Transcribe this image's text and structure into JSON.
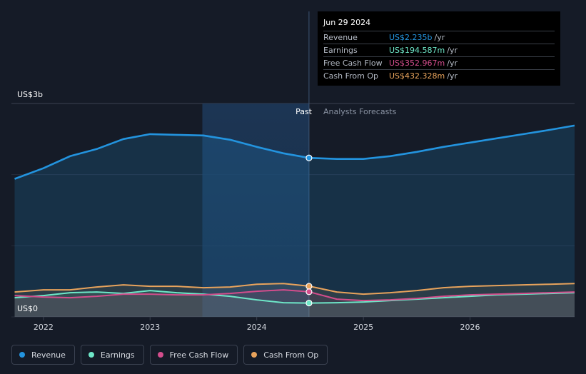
{
  "colors": {
    "revenue": "#2394df",
    "earnings": "#6ee7c8",
    "free_cash_flow": "#d34d8c",
    "cash_from_op": "#e8a35c",
    "background": "#151b27"
  },
  "chart_data": {
    "type": "line",
    "y_max_label": "US$3b",
    "y_min_label": "US$0",
    "ylim": [
      0,
      3.0
    ],
    "xlim": [
      2021.7,
      2026.98
    ],
    "x_ticks": [
      {
        "value": 2022.0,
        "label": "2022"
      },
      {
        "value": 2023.0,
        "label": "2023"
      },
      {
        "value": 2024.0,
        "label": "2024"
      },
      {
        "value": 2025.0,
        "label": "2025"
      },
      {
        "value": 2026.0,
        "label": "2026"
      }
    ],
    "past_label": "Past",
    "forecast_label": "Analysts Forecasts",
    "divider_x": 2024.49,
    "shade_start_x": 2023.49,
    "marker_x": 2024.49,
    "grid": true,
    "legend_position": "bottom-left",
    "series": [
      {
        "name": "Revenue",
        "key": "revenue",
        "x": [
          2021.73,
          2022.0,
          2022.25,
          2022.5,
          2022.75,
          2023.0,
          2023.25,
          2023.5,
          2023.75,
          2024.0,
          2024.25,
          2024.49,
          2024.75,
          2025.0,
          2025.25,
          2025.5,
          2025.75,
          2026.0,
          2026.25,
          2026.5,
          2026.75,
          2026.98
        ],
        "y": [
          1.94,
          2.09,
          2.26,
          2.36,
          2.5,
          2.57,
          2.56,
          2.55,
          2.49,
          2.39,
          2.3,
          2.235,
          2.22,
          2.22,
          2.26,
          2.32,
          2.39,
          2.45,
          2.51,
          2.57,
          2.63,
          2.69
        ]
      },
      {
        "name": "Earnings",
        "key": "earnings",
        "x": [
          2021.73,
          2022.0,
          2022.25,
          2022.5,
          2022.75,
          2023.0,
          2023.25,
          2023.5,
          2023.75,
          2024.0,
          2024.25,
          2024.49,
          2024.75,
          2025.0,
          2025.25,
          2025.5,
          2025.75,
          2026.0,
          2026.25,
          2026.5,
          2026.75,
          2026.98
        ],
        "y": [
          0.27,
          0.3,
          0.34,
          0.35,
          0.33,
          0.37,
          0.34,
          0.32,
          0.29,
          0.24,
          0.2,
          0.195,
          0.2,
          0.21,
          0.23,
          0.25,
          0.27,
          0.29,
          0.31,
          0.32,
          0.33,
          0.34
        ]
      },
      {
        "name": "Free Cash Flow",
        "key": "free_cash_flow",
        "x": [
          2021.73,
          2022.0,
          2022.25,
          2022.5,
          2022.75,
          2023.0,
          2023.25,
          2023.5,
          2023.75,
          2024.0,
          2024.25,
          2024.49,
          2024.75,
          2025.0,
          2025.25,
          2025.5,
          2025.75,
          2026.0,
          2026.25,
          2026.5,
          2026.75,
          2026.98
        ],
        "y": [
          0.3,
          0.28,
          0.27,
          0.29,
          0.32,
          0.32,
          0.31,
          0.31,
          0.33,
          0.36,
          0.38,
          0.353,
          0.25,
          0.23,
          0.24,
          0.26,
          0.29,
          0.31,
          0.32,
          0.33,
          0.34,
          0.35
        ]
      },
      {
        "name": "Cash From Op",
        "key": "cash_from_op",
        "x": [
          2021.73,
          2022.0,
          2022.25,
          2022.5,
          2022.75,
          2023.0,
          2023.25,
          2023.5,
          2023.75,
          2024.0,
          2024.25,
          2024.49,
          2024.75,
          2025.0,
          2025.25,
          2025.5,
          2025.75,
          2026.0,
          2026.25,
          2026.5,
          2026.75,
          2026.98
        ],
        "y": [
          0.35,
          0.38,
          0.38,
          0.42,
          0.45,
          0.43,
          0.43,
          0.41,
          0.42,
          0.46,
          0.47,
          0.432,
          0.35,
          0.32,
          0.34,
          0.37,
          0.41,
          0.43,
          0.44,
          0.45,
          0.46,
          0.47
        ]
      }
    ]
  },
  "tooltip": {
    "date": "Jun 29 2024",
    "rows": [
      {
        "label": "Revenue",
        "value": "US$2.235b",
        "unit": "/yr",
        "color": "#2394df"
      },
      {
        "label": "Earnings",
        "value": "US$194.587m",
        "unit": "/yr",
        "color": "#6ee7c8"
      },
      {
        "label": "Free Cash Flow",
        "value": "US$352.967m",
        "unit": "/yr",
        "color": "#d34d8c"
      },
      {
        "label": "Cash From Op",
        "value": "US$432.328m",
        "unit": "/yr",
        "color": "#e8a35c"
      }
    ]
  },
  "legend": [
    {
      "label": "Revenue",
      "color": "#2394df"
    },
    {
      "label": "Earnings",
      "color": "#6ee7c8"
    },
    {
      "label": "Free Cash Flow",
      "color": "#d34d8c"
    },
    {
      "label": "Cash From Op",
      "color": "#e8a35c"
    }
  ]
}
